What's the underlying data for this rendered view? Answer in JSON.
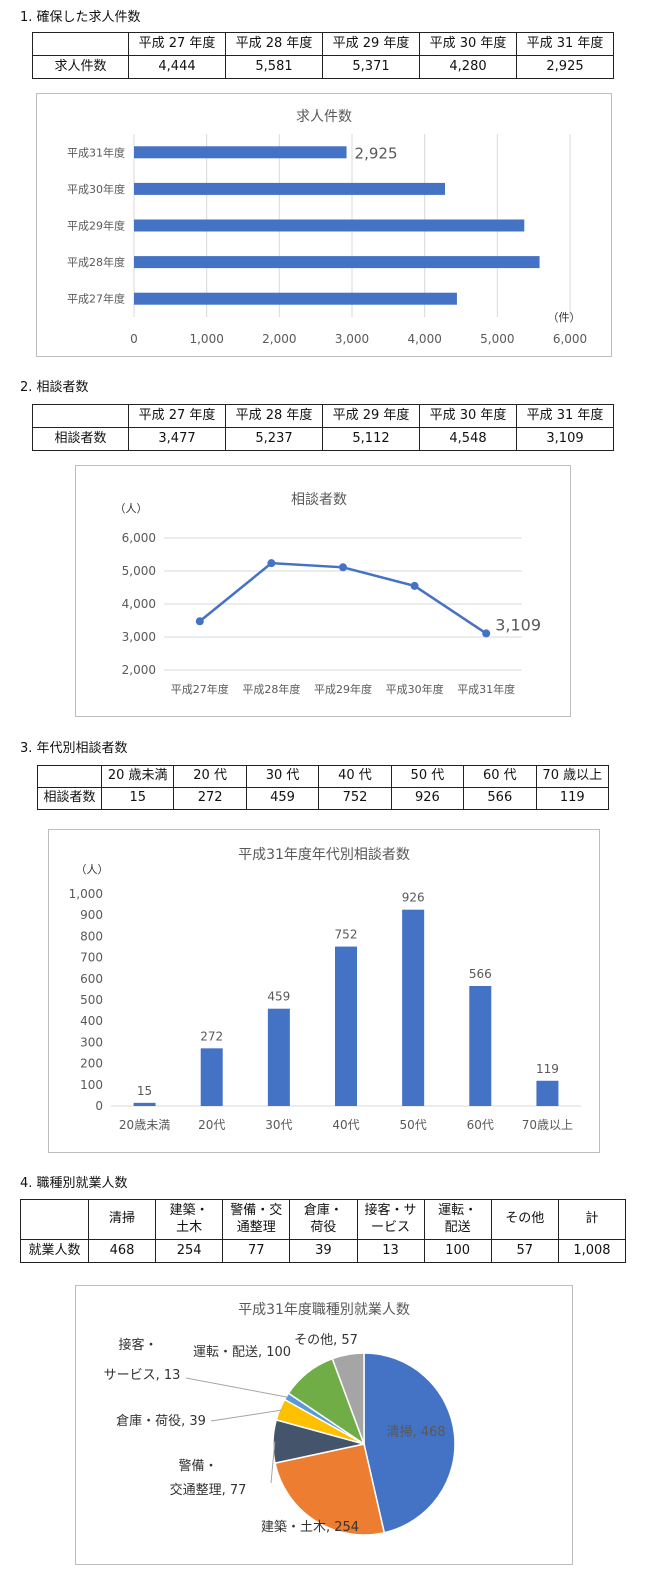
{
  "sections": [
    {
      "heading": "1. 確保した求人件数",
      "table": {
        "headers": [
          "平成 27 年度",
          "平成 28 年度",
          "平成 29 年度",
          "平成 30 年度",
          "平成 31 年度"
        ],
        "row_label": "求人件数",
        "values": [
          "4,444",
          "5,581",
          "5,371",
          "4,280",
          "2,925"
        ]
      }
    },
    {
      "heading": "2. 相談者数",
      "table": {
        "headers": [
          "平成 27 年度",
          "平成 28 年度",
          "平成 29 年度",
          "平成 30 年度",
          "平成 31 年度"
        ],
        "row_label": "相談者数",
        "values": [
          "3,477",
          "5,237",
          "5,112",
          "4,548",
          "3,109"
        ]
      }
    },
    {
      "heading": "3. 年代別相談者数",
      "table": {
        "headers": [
          "20 歳未満",
          "20 代",
          "30 代",
          "40 代",
          "50 代",
          "60 代",
          "70 歳以上"
        ],
        "row_label": "相談者数",
        "values": [
          "15",
          "272",
          "459",
          "752",
          "926",
          "566",
          "119"
        ]
      }
    },
    {
      "heading": "4. 職種別就業人数",
      "table": {
        "headers": [
          "清掃",
          "建築・土木",
          "警備・交通整理",
          "倉庫・荷役",
          "接客・サービス",
          "運転・配送",
          "その他",
          "計"
        ],
        "row_label": "就業人数",
        "values": [
          "468",
          "254",
          "77",
          "39",
          "13",
          "100",
          "57",
          "1,008"
        ]
      }
    }
  ],
  "chart_data": [
    {
      "type": "bar",
      "orientation": "horizontal",
      "title": "求人件数",
      "categories": [
        "平成27年度",
        "平成28年度",
        "平成29年度",
        "平成30年度",
        "平成31年度"
      ],
      "values": [
        4444,
        5581,
        5371,
        4280,
        2925
      ],
      "xlim": [
        0,
        6000
      ],
      "xticks": [
        "0",
        "1,000",
        "2,000",
        "3,000",
        "4,000",
        "5,000",
        "6,000"
      ],
      "unit": "（件）",
      "data_label": "2,925",
      "color": "#4472c4"
    },
    {
      "type": "line",
      "title": "相談者数",
      "categories": [
        "平成27年度",
        "平成28年度",
        "平成29年度",
        "平成30年度",
        "平成31年度"
      ],
      "values": [
        3477,
        5237,
        5112,
        4548,
        3109
      ],
      "ylim": [
        2000,
        6000
      ],
      "yticks": [
        "2,000",
        "3,000",
        "4,000",
        "5,000",
        "6,000"
      ],
      "unit": "（人）",
      "data_label": "3,109",
      "color": "#4472c4"
    },
    {
      "type": "bar",
      "title": "平成31年度年代別相談者数",
      "categories": [
        "20歳未満",
        "20代",
        "30代",
        "40代",
        "50代",
        "60代",
        "70歳以上"
      ],
      "values": [
        15,
        272,
        459,
        752,
        926,
        566,
        119
      ],
      "ylim": [
        0,
        1000
      ],
      "yticks": [
        "0",
        "100",
        "200",
        "300",
        "400",
        "500",
        "600",
        "700",
        "800",
        "900",
        "1,000"
      ],
      "unit": "（人）",
      "data_labels": [
        "15",
        "272",
        "459",
        "752",
        "926",
        "566",
        "119"
      ],
      "color": "#4472c4"
    },
    {
      "type": "pie",
      "title": "平成31年度職種別就業人数",
      "slices": [
        {
          "label": "清掃, 468",
          "value": 468,
          "color": "#4472c4"
        },
        {
          "label": "建築・土木, 254",
          "value": 254,
          "color": "#ed7d31"
        },
        {
          "label": "警備・交通整理, 77",
          "value": 77,
          "color": "#44546a"
        },
        {
          "label": "倉庫・荷役, 39",
          "value": 39,
          "color": "#ffc000"
        },
        {
          "label": "接客・サービス, 13",
          "value": 13,
          "color": "#5b9bd5"
        },
        {
          "label": "運転・配送, 100",
          "value": 100,
          "color": "#70ad47"
        },
        {
          "label": "その他, 57",
          "value": 57,
          "color": "#a5a5a5"
        }
      ],
      "slice_labels": [
        "清掃, 468",
        "建築・土木, 254",
        "警備・",
        "交通整理, 77",
        "倉庫・荷役, 39",
        "接客・",
        "サービス, 13",
        "運転・配送, 100",
        "その他, 57"
      ]
    }
  ]
}
